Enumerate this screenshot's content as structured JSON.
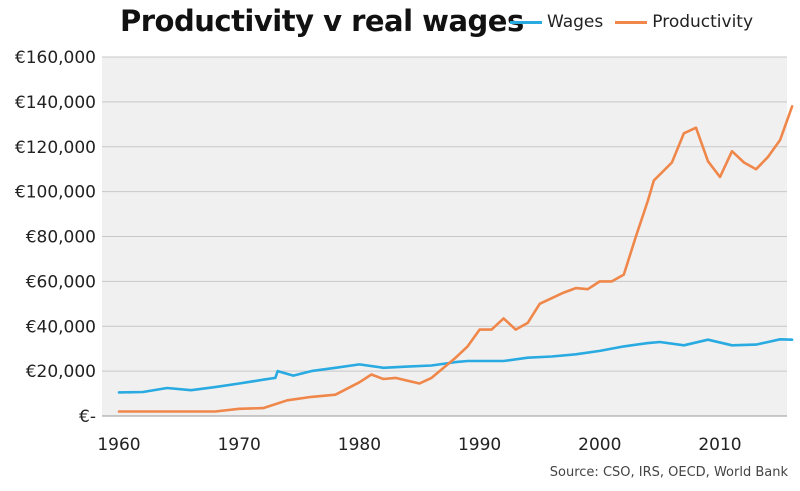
{
  "chart_data": {
    "type": "line",
    "title": "Productivity v real wages",
    "source": "Source: CSO, IRS, OECD, World Bank",
    "xlabel": "",
    "ylabel": "",
    "xlim": [
      1960,
      2016
    ],
    "ylim": [
      0,
      160000
    ],
    "x_ticks": [
      1960,
      1970,
      1980,
      1990,
      2000,
      2010
    ],
    "y_ticks": [
      {
        "value": 0,
        "label": "€-"
      },
      {
        "value": 20000,
        "label": "€20,000"
      },
      {
        "value": 40000,
        "label": "€40,000"
      },
      {
        "value": 60000,
        "label": "€60,000"
      },
      {
        "value": 80000,
        "label": "€80,000"
      },
      {
        "value": 100000,
        "label": "€100,000"
      },
      {
        "value": 120000,
        "label": "€120,000"
      },
      {
        "value": 140000,
        "label": "€140,000"
      },
      {
        "value": 160000,
        "label": "€160,000"
      }
    ],
    "grid": true,
    "legend_position": "top",
    "series": [
      {
        "name": "Wages",
        "color": "#29aae1",
        "x": [
          1960,
          1962,
          1964,
          1966,
          1968,
          1970,
          1972,
          1973,
          1973.2,
          1974.5,
          1976,
          1978,
          1980,
          1982,
          1984,
          1986,
          1988,
          1989,
          1990,
          1992,
          1994,
          1996,
          1998,
          2000,
          2002,
          2004,
          2005,
          2007,
          2009,
          2011,
          2013,
          2014,
          2015,
          2016
        ],
        "y": [
          10500,
          10700,
          12500,
          11500,
          12900,
          14500,
          16200,
          17000,
          20000,
          18000,
          20000,
          21500,
          23000,
          21500,
          22000,
          22500,
          24000,
          24500,
          24500,
          24500,
          26000,
          26500,
          27500,
          29000,
          31000,
          32500,
          33000,
          31500,
          34000,
          31500,
          31800,
          33000,
          34200,
          34000
        ]
      },
      {
        "name": "Productivity",
        "color": "#f0874a",
        "x": [
          1960,
          1962,
          1964,
          1966,
          1968,
          1970,
          1972,
          1974,
          1976,
          1977,
          1978,
          1980,
          1981,
          1982,
          1983,
          1985,
          1986,
          1988,
          1989,
          1990,
          1991,
          1992,
          1993,
          1994,
          1995,
          1997,
          1998,
          1999,
          2000,
          2001,
          2002,
          2003,
          2004,
          2004.5,
          2006,
          2007,
          2008,
          2009,
          2010,
          2011,
          2012,
          2013,
          2014,
          2015,
          2016
        ],
        "y": [
          2000,
          2000,
          2000,
          2000,
          2000,
          3200,
          3500,
          7000,
          8500,
          9000,
          9500,
          15000,
          18500,
          16500,
          17000,
          14500,
          17000,
          26000,
          31000,
          38500,
          38500,
          43500,
          38500,
          41500,
          50000,
          55000,
          57000,
          56500,
          60000,
          60000,
          63000,
          80000,
          96000,
          105000,
          113000,
          126000,
          128500,
          113500,
          106500,
          118000,
          113000,
          110000,
          115500,
          123000,
          138000
        ]
      }
    ]
  }
}
